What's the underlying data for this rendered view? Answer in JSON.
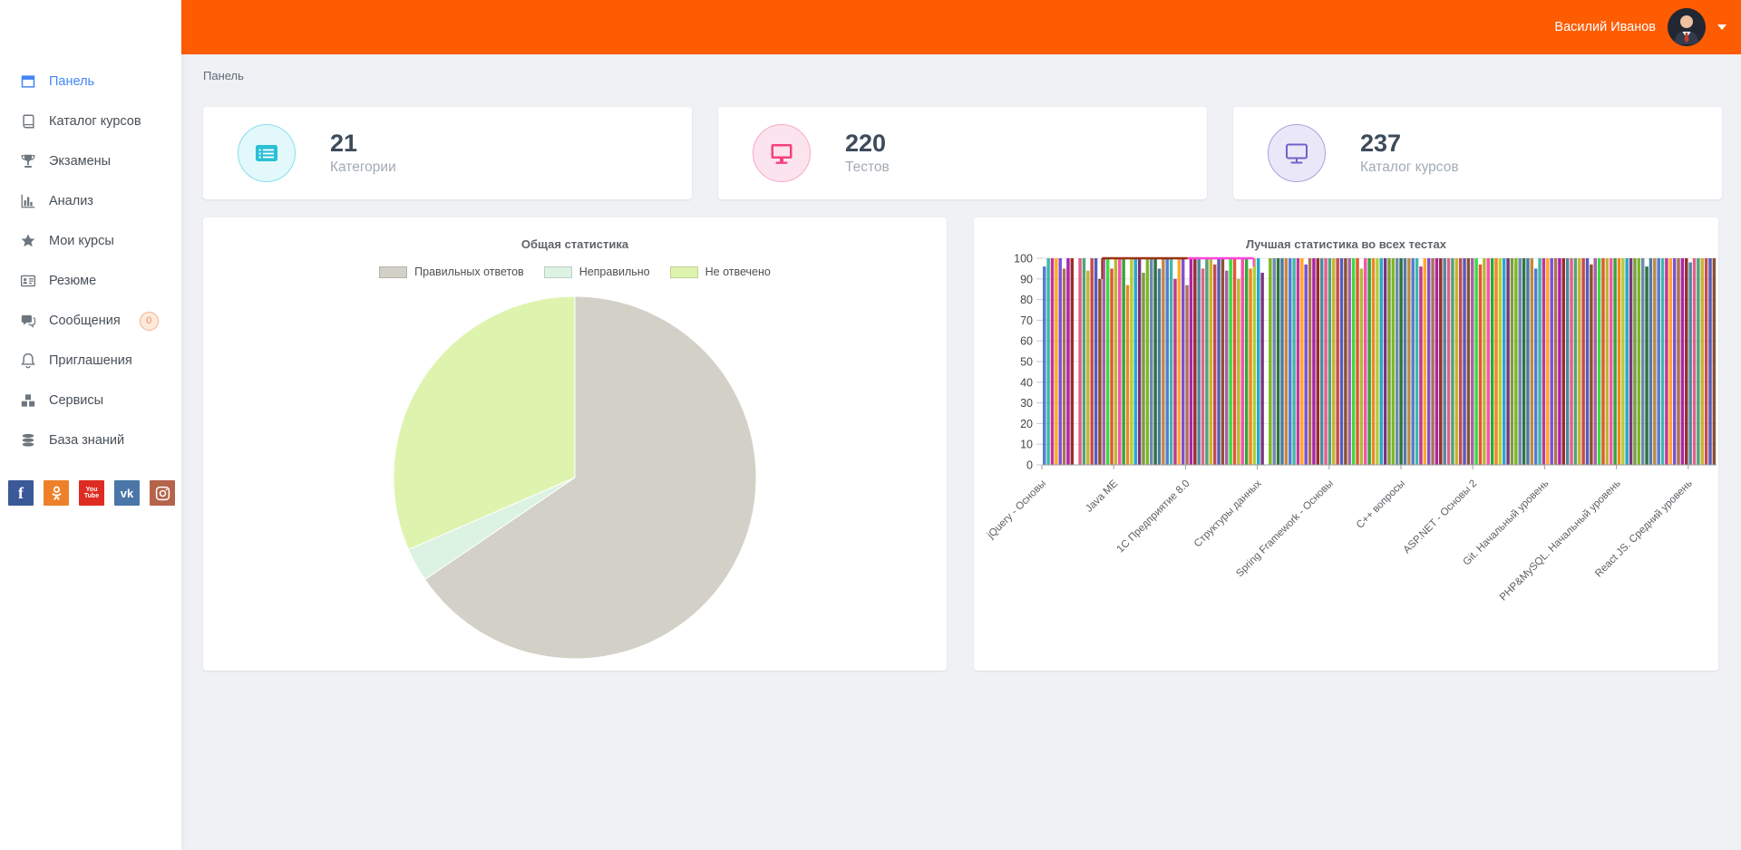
{
  "header": {
    "user_name": "Василий Иванов",
    "bg_color": "#fd5c02"
  },
  "breadcrumb": {
    "label": "Панель"
  },
  "sidebar": {
    "items": [
      {
        "label": "Панель",
        "icon": "dashboard-icon",
        "active": true
      },
      {
        "label": "Каталог курсов",
        "icon": "book-icon"
      },
      {
        "label": "Экзамены",
        "icon": "trophy-icon"
      },
      {
        "label": "Анализ",
        "icon": "chart-icon"
      },
      {
        "label": "Мои курсы",
        "icon": "star-icon"
      },
      {
        "label": "Резюме",
        "icon": "idcard-icon"
      },
      {
        "label": "Сообщения",
        "icon": "chat-icon",
        "badge": "0"
      },
      {
        "label": "Приглашения",
        "icon": "bell-icon"
      },
      {
        "label": "Сервисы",
        "icon": "cubes-icon"
      },
      {
        "label": "База знаний",
        "icon": "database-icon"
      }
    ],
    "social": [
      {
        "name": "facebook",
        "bg": "#3b5998"
      },
      {
        "name": "odnoklassniki",
        "bg": "#ed812b"
      },
      {
        "name": "youtube",
        "bg": "#de2c23",
        "lines": [
          "You",
          "Tube"
        ]
      },
      {
        "name": "vk",
        "bg": "#4a76a8",
        "text": "vk"
      },
      {
        "name": "instagram",
        "bg": "#b5634b"
      }
    ]
  },
  "stats": [
    {
      "value": "21",
      "label": "Категории",
      "accent": "#2bc0d4",
      "circle_bg": "#e2f8fb",
      "circle_border": "#8adeeb",
      "icon": "list-solid-icon"
    },
    {
      "value": "220",
      "label": "Тестов",
      "accent": "#f5417d",
      "circle_bg": "#fce4ee",
      "circle_border": "#f8a8c8",
      "icon": "monitor-solid-icon"
    },
    {
      "value": "237",
      "label": "Каталог курсов",
      "accent": "#7161ca",
      "circle_bg": "#eae7f8",
      "circle_border": "#aca2e0",
      "icon": "monitor-outline-icon"
    }
  ],
  "chart_data": [
    {
      "type": "pie",
      "title": "Общая статистика",
      "labels": [
        "Правильных ответов",
        "Неправильно",
        "Не отвечено"
      ],
      "values": [
        65.5,
        3,
        31.5
      ],
      "colors": [
        "#d3d1c7",
        "#dcf2e3",
        "#def4ae"
      ],
      "unit": "%",
      "legend_position": "top",
      "start_angle_deg": 0,
      "direction": "clockwise"
    },
    {
      "type": "bar",
      "title": "Лучшая статистика во всех тестах",
      "ylabel": "",
      "xlabel": "",
      "ylim": [
        0,
        100
      ],
      "yticks": [
        0,
        10,
        20,
        30,
        40,
        50,
        60,
        70,
        80,
        90,
        100
      ],
      "grid": true,
      "categories": [
        "jQuery - Основы",
        "Java ME",
        "1С Предприятие 8.0",
        "Структуры данных",
        "Spring Framework - Основы",
        "C++ вопросы",
        "ASP.NET - Основы 2",
        "Git. Начальный уровень",
        "PHP&MySQL. Начальный уровень",
        "React JS. Средний уровень"
      ],
      "values": [
        96,
        100,
        100,
        100,
        100,
        95,
        100,
        100,
        0,
        100,
        100,
        94,
        100,
        100,
        90,
        100,
        100,
        95,
        100,
        100,
        100,
        87,
        100,
        100,
        100,
        93,
        100,
        100,
        100,
        95,
        100,
        100,
        100,
        90,
        100,
        100,
        87,
        100,
        100,
        100,
        95,
        100,
        100,
        97,
        100,
        100,
        94,
        100,
        100,
        90,
        100,
        100,
        95,
        100,
        100,
        93,
        0,
        100,
        100,
        100,
        100,
        100,
        100,
        100,
        100,
        100,
        97,
        100,
        100,
        100,
        100,
        100,
        100,
        100,
        100,
        100,
        100,
        100,
        100,
        100,
        95,
        100,
        100,
        100,
        100,
        100,
        100,
        100,
        100,
        100,
        100,
        100,
        100,
        100,
        100,
        96,
        100,
        100,
        100,
        100,
        100,
        100,
        100,
        100,
        100,
        100,
        100,
        100,
        100,
        100,
        97,
        100,
        100,
        100,
        100,
        100,
        100,
        100,
        100,
        100,
        100,
        100,
        100,
        100,
        95,
        100,
        100,
        100,
        100,
        100,
        100,
        100,
        100,
        100,
        100,
        100,
        100,
        100,
        97,
        100,
        100,
        100,
        100,
        100,
        100,
        100,
        100,
        100,
        100,
        100,
        100,
        100,
        96,
        100,
        100,
        100,
        100,
        100,
        100,
        100,
        100,
        100,
        100,
        98,
        100,
        100,
        100,
        100,
        100,
        100
      ],
      "palette": [
        "#3366cc",
        "#dc3912",
        "#ff9900",
        "#109618",
        "#990099",
        "#0099c6",
        "#dd4477",
        "#66aa00",
        "#b82e2e",
        "#316395",
        "#994499",
        "#22aa99",
        "#aaaa11",
        "#6633cc",
        "#e67300",
        "#8b0707",
        "#651067",
        "#329262",
        "#5574a6",
        "#3b3eac",
        "#b77322",
        "#16d620",
        "#b91383",
        "#f4359e",
        "#9c5935",
        "#a9c413",
        "#2a778d",
        "#668d1c",
        "#bea413",
        "#0c5922",
        "#743411"
      ],
      "overlays": [
        {
          "color": "#9a3110",
          "from": 0.088,
          "to": 0.215,
          "drop_left": 10
        },
        {
          "color": "#ff44dd",
          "from": 0.215,
          "to": 0.313,
          "drop_right": 4
        }
      ]
    }
  ]
}
